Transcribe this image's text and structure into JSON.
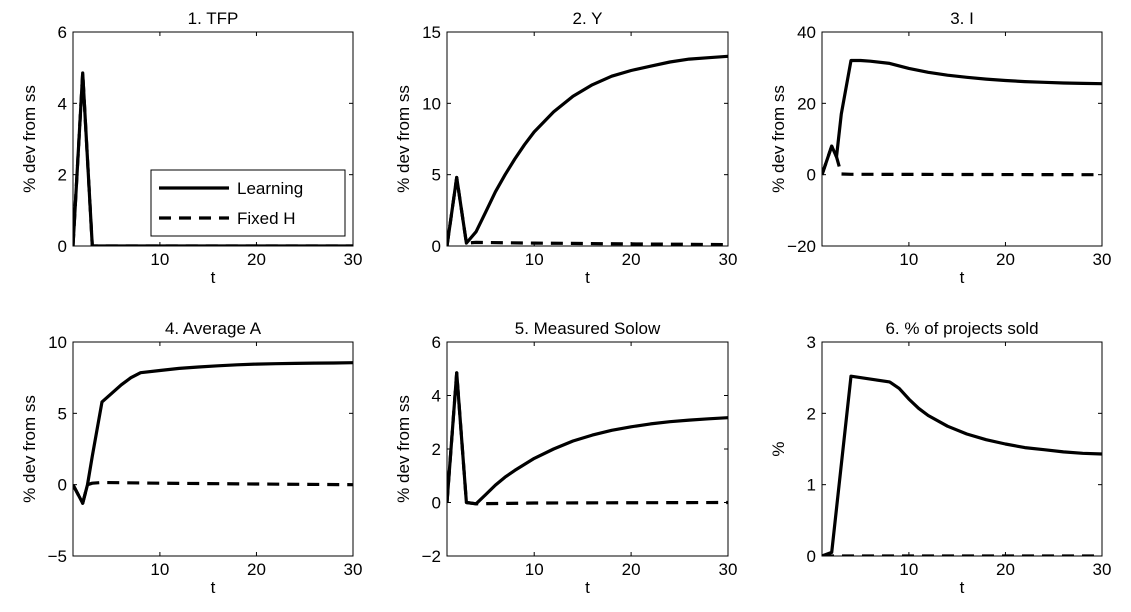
{
  "chart_data": [
    {
      "type": "line",
      "title": "1. TFP",
      "xlabel": "t",
      "ylabel": "% dev from ss",
      "xlim": [
        1,
        30
      ],
      "ylim": [
        0,
        6
      ],
      "xticks": [
        10,
        20,
        30
      ],
      "yticks": [
        0,
        2,
        4,
        6
      ],
      "legend": {
        "placement": "lower-right",
        "entries": [
          {
            "name": "Learning",
            "style": "solid"
          },
          {
            "name": "Fixed H",
            "style": "dashed"
          }
        ]
      },
      "series": [
        {
          "name": "Learning",
          "style": "solid",
          "points": [
            [
              1,
              0
            ],
            [
              2,
              4.85
            ],
            [
              3,
              0
            ],
            [
              4,
              0
            ],
            [
              30,
              0
            ]
          ]
        },
        {
          "name": "Fixed H",
          "style": "dashed",
          "points": [
            [
              1,
              0
            ],
            [
              2,
              4.85
            ],
            [
              3,
              0
            ],
            [
              4,
              0
            ],
            [
              30,
              0
            ]
          ]
        }
      ]
    },
    {
      "type": "line",
      "title": "2. Y",
      "xlabel": "t",
      "ylabel": "% dev from ss",
      "xlim": [
        1,
        30
      ],
      "ylim": [
        0,
        15
      ],
      "xticks": [
        10,
        20,
        30
      ],
      "yticks": [
        0,
        5,
        10,
        15
      ],
      "series": [
        {
          "name": "Learning",
          "style": "solid",
          "points": [
            [
              1,
              0
            ],
            [
              2,
              4.8
            ],
            [
              3,
              0.2
            ],
            [
              4,
              1.0
            ],
            [
              5,
              2.4
            ],
            [
              6,
              3.8
            ],
            [
              7,
              5.0
            ],
            [
              8,
              6.1
            ],
            [
              9,
              7.1
            ],
            [
              10,
              8.0
            ],
            [
              12,
              9.4
            ],
            [
              14,
              10.5
            ],
            [
              16,
              11.3
            ],
            [
              18,
              11.9
            ],
            [
              20,
              12.3
            ],
            [
              22,
              12.6
            ],
            [
              24,
              12.9
            ],
            [
              26,
              13.1
            ],
            [
              28,
              13.2
            ],
            [
              30,
              13.3
            ]
          ]
        },
        {
          "name": "Fixed H",
          "style": "dashed",
          "points": [
            [
              1,
              0
            ],
            [
              2,
              4.8
            ],
            [
              3,
              0.2
            ],
            [
              4,
              0.25
            ],
            [
              10,
              0.2
            ],
            [
              20,
              0.15
            ],
            [
              30,
              0.1
            ]
          ]
        }
      ]
    },
    {
      "type": "line",
      "title": "3. I",
      "xlabel": "t",
      "ylabel": "% dev from ss",
      "xlim": [
        1,
        30
      ],
      "ylim": [
        -20,
        40
      ],
      "xticks": [
        10,
        20,
        30
      ],
      "yticks": [
        -20,
        0,
        20,
        40
      ],
      "series": [
        {
          "name": "Learning",
          "style": "solid",
          "points": [
            [
              1,
              0
            ],
            [
              2,
              8.0
            ],
            [
              2.5,
              5.0
            ],
            [
              3,
              17
            ],
            [
              4,
              32
            ],
            [
              5,
              32
            ],
            [
              6,
              31.8
            ],
            [
              8,
              31.2
            ],
            [
              10,
              29.8
            ],
            [
              12,
              28.7
            ],
            [
              14,
              27.9
            ],
            [
              16,
              27.3
            ],
            [
              18,
              26.8
            ],
            [
              20,
              26.4
            ],
            [
              22,
              26.1
            ],
            [
              24,
              25.9
            ],
            [
              26,
              25.7
            ],
            [
              28,
              25.6
            ],
            [
              30,
              25.5
            ]
          ]
        },
        {
          "name": "Fixed H",
          "style": "dashed",
          "points": [
            [
              1,
              0
            ],
            [
              2,
              8.0
            ],
            [
              2.5,
              5.0
            ],
            [
              3,
              0.2
            ],
            [
              4,
              0.1
            ],
            [
              30,
              0
            ]
          ]
        }
      ]
    },
    {
      "type": "line",
      "title": "4. Average A",
      "xlabel": "t",
      "ylabel": "% dev from ss",
      "xlim": [
        1,
        30
      ],
      "ylim": [
        -5,
        10
      ],
      "xticks": [
        10,
        20,
        30
      ],
      "yticks": [
        -5,
        0,
        5,
        10
      ],
      "series": [
        {
          "name": "Learning",
          "style": "solid",
          "points": [
            [
              1,
              0
            ],
            [
              2,
              -1.3
            ],
            [
              2.5,
              0
            ],
            [
              3,
              2.0
            ],
            [
              4,
              5.8
            ],
            [
              5,
              6.4
            ],
            [
              6,
              7.0
            ],
            [
              7,
              7.5
            ],
            [
              8,
              7.85
            ],
            [
              10,
              8.0
            ],
            [
              12,
              8.15
            ],
            [
              14,
              8.25
            ],
            [
              16,
              8.33
            ],
            [
              18,
              8.4
            ],
            [
              20,
              8.45
            ],
            [
              22,
              8.48
            ],
            [
              24,
              8.5
            ],
            [
              26,
              8.52
            ],
            [
              28,
              8.53
            ],
            [
              30,
              8.55
            ]
          ]
        },
        {
          "name": "Fixed H",
          "style": "dashed",
          "points": [
            [
              1,
              0
            ],
            [
              2,
              -1.3
            ],
            [
              2.5,
              0
            ],
            [
              3,
              0.1
            ],
            [
              4,
              0.15
            ],
            [
              10,
              0.1
            ],
            [
              20,
              0.05
            ],
            [
              30,
              0
            ]
          ]
        }
      ]
    },
    {
      "type": "line",
      "title": "5. Measured Solow",
      "xlabel": "t",
      "ylabel": "% dev from ss",
      "xlim": [
        1,
        30
      ],
      "ylim": [
        -2,
        6
      ],
      "xticks": [
        10,
        20,
        30
      ],
      "yticks": [
        -2,
        0,
        2,
        4,
        6
      ],
      "series": [
        {
          "name": "Learning",
          "style": "solid",
          "points": [
            [
              1,
              0
            ],
            [
              2,
              4.85
            ],
            [
              3,
              0
            ],
            [
              4,
              -0.05
            ],
            [
              5,
              0.3
            ],
            [
              6,
              0.65
            ],
            [
              7,
              0.95
            ],
            [
              8,
              1.2
            ],
            [
              10,
              1.65
            ],
            [
              12,
              2.0
            ],
            [
              14,
              2.3
            ],
            [
              16,
              2.52
            ],
            [
              18,
              2.7
            ],
            [
              20,
              2.83
            ],
            [
              22,
              2.94
            ],
            [
              24,
              3.02
            ],
            [
              26,
              3.08
            ],
            [
              28,
              3.13
            ],
            [
              30,
              3.17
            ]
          ]
        },
        {
          "name": "Fixed H",
          "style": "dashed",
          "points": [
            [
              1,
              0
            ],
            [
              2,
              4.85
            ],
            [
              3,
              0
            ],
            [
              4,
              -0.05
            ],
            [
              10,
              -0.02
            ],
            [
              30,
              0
            ]
          ]
        }
      ]
    },
    {
      "type": "line",
      "title": "6. % of projects sold",
      "xlabel": "t",
      "ylabel": "%",
      "xlim": [
        1,
        30
      ],
      "ylim": [
        0,
        3
      ],
      "xticks": [
        10,
        20,
        30
      ],
      "yticks": [
        0,
        1,
        2,
        3
      ],
      "series": [
        {
          "name": "Learning",
          "style": "solid",
          "points": [
            [
              1,
              0
            ],
            [
              2,
              0.05
            ],
            [
              4,
              2.52
            ],
            [
              6,
              2.48
            ],
            [
              8,
              2.44
            ],
            [
              9,
              2.35
            ],
            [
              10,
              2.2
            ],
            [
              11,
              2.07
            ],
            [
              12,
              1.97
            ],
            [
              14,
              1.82
            ],
            [
              16,
              1.71
            ],
            [
              18,
              1.63
            ],
            [
              20,
              1.57
            ],
            [
              22,
              1.52
            ],
            [
              24,
              1.49
            ],
            [
              26,
              1.46
            ],
            [
              28,
              1.44
            ],
            [
              30,
              1.43
            ]
          ]
        },
        {
          "name": "Fixed H",
          "style": "dashed",
          "points": [
            [
              1,
              0
            ],
            [
              2,
              0
            ],
            [
              30,
              0
            ]
          ]
        }
      ]
    }
  ]
}
